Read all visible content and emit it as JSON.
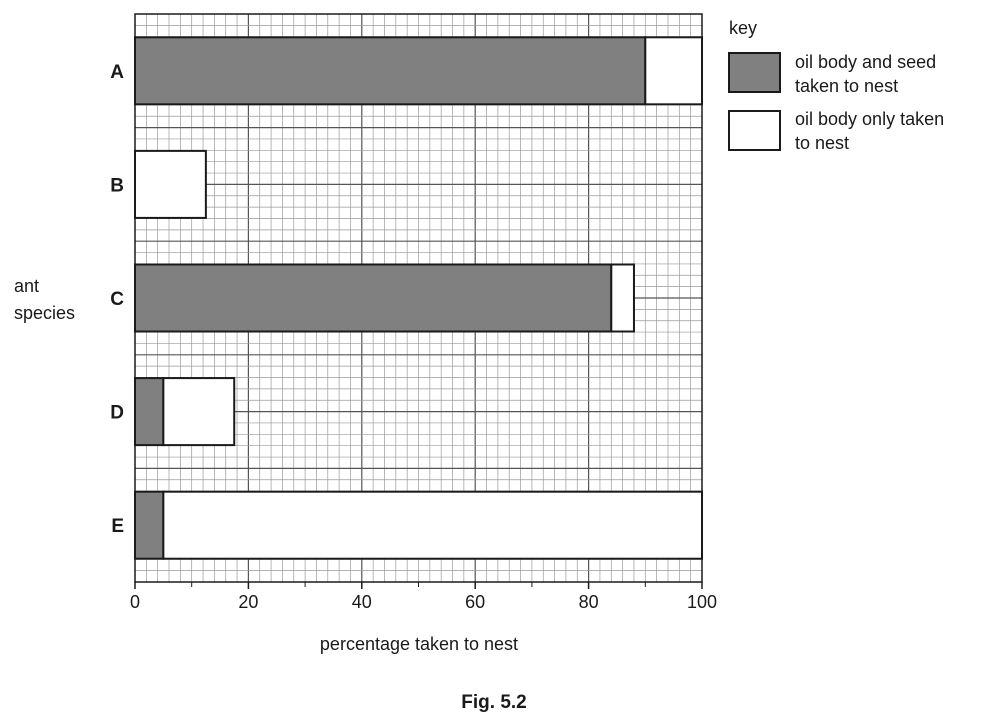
{
  "chart_data": {
    "type": "bar",
    "orientation": "horizontal",
    "stacked": true,
    "categories": [
      "A",
      "B",
      "C",
      "D",
      "E"
    ],
    "series": [
      {
        "name": "oil body and seed taken to nest",
        "values": [
          90,
          0,
          84,
          5,
          5
        ],
        "color": "#808080"
      },
      {
        "name": "oil body only taken to nest",
        "values": [
          10,
          12.5,
          4,
          12.5,
          95
        ],
        "color": "#ffffff"
      }
    ],
    "xlabel": "percentage taken to nest",
    "ylabel_lines": [
      "ant",
      "species"
    ],
    "xlim": [
      0,
      100
    ],
    "x_ticks": [
      "0",
      "20",
      "40",
      "60",
      "80",
      "100"
    ],
    "grid": true,
    "legend_title": "key",
    "legend_entries": [
      {
        "lines": [
          "oil body and seed",
          "taken to nest"
        ]
      },
      {
        "lines": [
          "oil body only taken",
          "to nest"
        ]
      }
    ],
    "legend_position": "right",
    "caption": "Fig. 5.2"
  }
}
